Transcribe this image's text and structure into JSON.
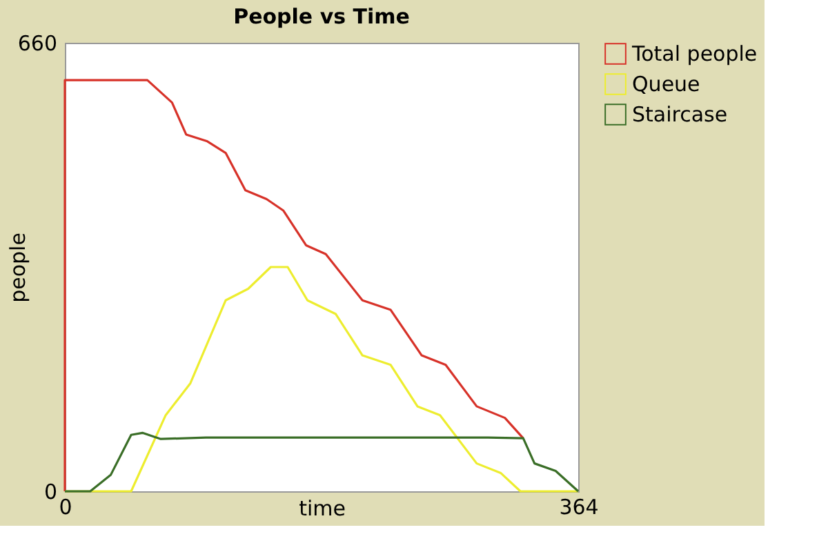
{
  "chart_data": {
    "type": "line",
    "title": "People vs Time",
    "xlabel": "time",
    "ylabel": "people",
    "xlim": [
      0,
      364
    ],
    "ylim": [
      0,
      660
    ],
    "xticks": [
      0,
      364
    ],
    "yticks": [
      0,
      660
    ],
    "grid": false,
    "legend": "top right",
    "marker": "none",
    "line_style": "solid",
    "series": [
      {
        "name": "Total people",
        "color": "#d73229",
        "x": [
          0,
          0,
          58.5,
          76,
          86,
          101,
          114,
          128,
          143,
          155,
          171,
          185,
          211,
          231,
          253,
          270,
          292,
          312,
          325
        ],
        "values": [
          0,
          605,
          605,
          572,
          525,
          515,
          498,
          443,
          430,
          413,
          362,
          349,
          281,
          267,
          200,
          186,
          125,
          108,
          78
        ]
      },
      {
        "name": "Queue",
        "color": "#eded2f",
        "x": [
          0,
          47,
          71.5,
          89,
          114,
          130,
          146,
          158,
          172,
          192,
          211,
          231,
          250,
          266,
          292,
          309,
          323,
          364
        ],
        "values": [
          0,
          0,
          112,
          159,
          281,
          298,
          330,
          330,
          281,
          261,
          200,
          186,
          125,
          112,
          41,
          27,
          0,
          0
        ]
      },
      {
        "name": "Staircase",
        "color": "#3a6e27",
        "x": [
          0,
          18,
          32.5,
          47,
          55,
          68,
          100,
          150,
          200,
          250,
          300,
          325,
          333,
          348,
          364
        ],
        "values": [
          0,
          0,
          24,
          83,
          86,
          77,
          79,
          79,
          79,
          79,
          79,
          78,
          41,
          30,
          0
        ]
      }
    ]
  }
}
